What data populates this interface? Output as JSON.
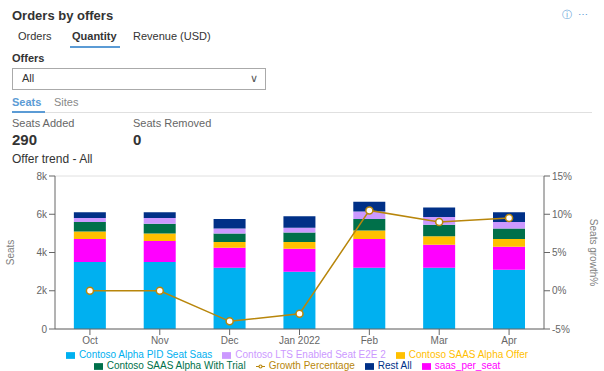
{
  "chart_data": {
    "type": "bar",
    "title": "Orders by offers",
    "subtitle": "Offer trend - All",
    "annotations": [
      "ⓘ  ⋯",
      "Orders",
      "Quantity",
      "Revenue (USD)",
      "Offers",
      "All",
      "∨",
      "Seats",
      "Sites",
      "Seats Added",
      "Seats Removed",
      "290",
      "0"
    ],
    "categories": [
      "Oct",
      "Nov",
      "Dec",
      "Jan 2022",
      "Feb",
      "Mar",
      "Apr"
    ],
    "stacked": true,
    "series": [
      {
        "name": "Contoso Alpha PID Seat Saas",
        "color": "#00B0F0",
        "values": [
          3500,
          3500,
          3200,
          3000,
          3200,
          3200,
          3100
        ]
      },
      {
        "name": "saas_per_seat",
        "color": "#FF00FF",
        "values": [
          1200,
          1100,
          1050,
          1200,
          1500,
          1200,
          1200
        ]
      },
      {
        "name": "Contoso SAAS Alpha Offer",
        "color": "#FFC000",
        "values": [
          400,
          400,
          300,
          350,
          450,
          450,
          400
        ]
      },
      {
        "name": "Contoso SAAS Alpha With Trial",
        "color": "#00704A",
        "values": [
          500,
          500,
          450,
          500,
          600,
          600,
          550
        ]
      },
      {
        "name": "Contoso LTS Enabled Seat E2E 2",
        "color": "#CC99FF",
        "values": [
          200,
          300,
          250,
          250,
          400,
          400,
          350
        ]
      },
      {
        "name": "Rest All",
        "color": "#003087",
        "values": [
          300,
          300,
          500,
          600,
          500,
          500,
          500
        ]
      },
      {
        "name": "Growth Percentage",
        "type": "line",
        "axis": "y2",
        "color": "#B8860B",
        "marker": "circle",
        "values": [
          0.0,
          0.0,
          -4.0,
          -3.0,
          10.5,
          9.0,
          9.5
        ]
      }
    ],
    "ylabel": "Seats",
    "y2label": "Seats growth%",
    "ylim": [
      0,
      8000
    ],
    "yticks": [
      0,
      {
        "value": 2000,
        "label": "2k"
      },
      {
        "value": 4000,
        "label": "4k"
      },
      {
        "value": 6000,
        "label": "6k"
      },
      {
        "value": 8000,
        "label": "8k"
      }
    ],
    "y2lim": [
      -5,
      15
    ],
    "y2ticks": [
      {
        "value": -5,
        "label": "-5%"
      },
      {
        "value": 0,
        "label": "0%"
      },
      {
        "value": 5,
        "label": "5%"
      },
      {
        "value": 10,
        "label": "10%"
      },
      {
        "value": 15,
        "label": "15%"
      }
    ],
    "grid": true,
    "legend": "bottom"
  }
}
